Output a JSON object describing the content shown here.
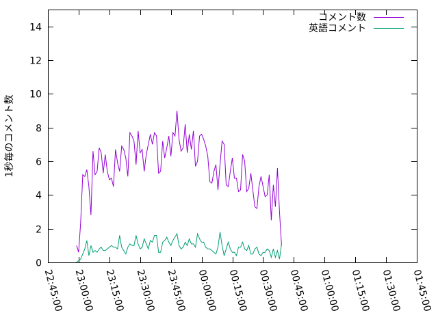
{
  "chart_data": {
    "type": "line",
    "title": "",
    "xlabel": "",
    "ylabel": "1秒毎のコメント数",
    "ylim": [
      0,
      15
    ],
    "yticks": [
      0,
      2,
      4,
      6,
      8,
      10,
      12,
      14
    ],
    "xlim": [
      "22:45:00",
      "01:45:00"
    ],
    "xticks": [
      "22:45:00",
      "23:00:00",
      "23:15:00",
      "23:30:00",
      "23:45:00",
      "00:00:00",
      "00:15:00",
      "00:30:00",
      "00:45:00",
      "01:00:00",
      "01:15:00",
      "01:30:00",
      "01:45:00"
    ],
    "grid": false,
    "legend_position": "top-right",
    "x_start": "22:59:00",
    "x_step_seconds": 60,
    "series": [
      {
        "name": "コメント数",
        "color": "#9400d3",
        "values": [
          1.0,
          0.6,
          2.4,
          5.2,
          5.1,
          5.5,
          4.5,
          2.8,
          6.6,
          5.2,
          5.4,
          6.8,
          6.5,
          5.3,
          6.4,
          5.4,
          4.9,
          5.0,
          4.5,
          6.7,
          5.9,
          5.4,
          6.9,
          6.7,
          6.2,
          5.1,
          7.7,
          7.5,
          7.2,
          5.8,
          7.8,
          6.5,
          6.7,
          5.4,
          6.4,
          7.0,
          7.6,
          7.0,
          7.7,
          7.5,
          5.3,
          5.4,
          7.2,
          6.2,
          6.8,
          7.5,
          6.3,
          7.7,
          7.5,
          9.0,
          7.3,
          6.6,
          6.8,
          8.2,
          6.5,
          7.6,
          6.7,
          7.8,
          5.7,
          6.0,
          7.5,
          7.6,
          7.3,
          6.9,
          6.3,
          4.8,
          4.7,
          5.4,
          5.8,
          4.3,
          5.8,
          7.2,
          7.0,
          4.6,
          4.5,
          5.4,
          6.2,
          5.0,
          5.0,
          4.2,
          4.3,
          6.4,
          6.0,
          4.2,
          4.4,
          5.3,
          4.3,
          3.3,
          3.2,
          4.5,
          5.1,
          4.5,
          3.9,
          4.0,
          5.2,
          2.5,
          4.6,
          3.3,
          5.6,
          3.0,
          1.0
        ]
      },
      {
        "name": "英語コメント",
        "color": "#009e73",
        "values": [
          0.0,
          0.1,
          0.2,
          0.5,
          0.8,
          1.3,
          0.4,
          1.0,
          0.6,
          0.7,
          0.6,
          0.8,
          0.9,
          0.7,
          0.7,
          0.8,
          0.9,
          1.0,
          0.9,
          0.9,
          0.8,
          1.6,
          0.9,
          0.7,
          0.5,
          0.9,
          1.1,
          1.0,
          1.0,
          1.6,
          1.1,
          0.8,
          0.9,
          1.4,
          1.1,
          0.8,
          1.3,
          1.2,
          1.6,
          1.6,
          0.6,
          0.6,
          1.2,
          1.3,
          1.5,
          1.2,
          1.0,
          1.3,
          1.5,
          1.7,
          1.0,
          0.8,
          0.9,
          1.2,
          1.0,
          1.4,
          1.1,
          1.1,
          0.9,
          1.7,
          1.4,
          1.2,
          1.2,
          0.9,
          0.8,
          0.8,
          0.7,
          0.6,
          0.5,
          0.9,
          1.8,
          1.0,
          0.4,
          0.8,
          1.2,
          0.8,
          0.6,
          0.6,
          0.4,
          0.9,
          0.9,
          1.2,
          0.8,
          0.7,
          1.0,
          0.5,
          0.5,
          0.8,
          0.9,
          0.5,
          0.4,
          0.6,
          0.6,
          0.8,
          0.7,
          0.3,
          0.8,
          0.3,
          0.7,
          0.2,
          1.1
        ]
      }
    ]
  }
}
